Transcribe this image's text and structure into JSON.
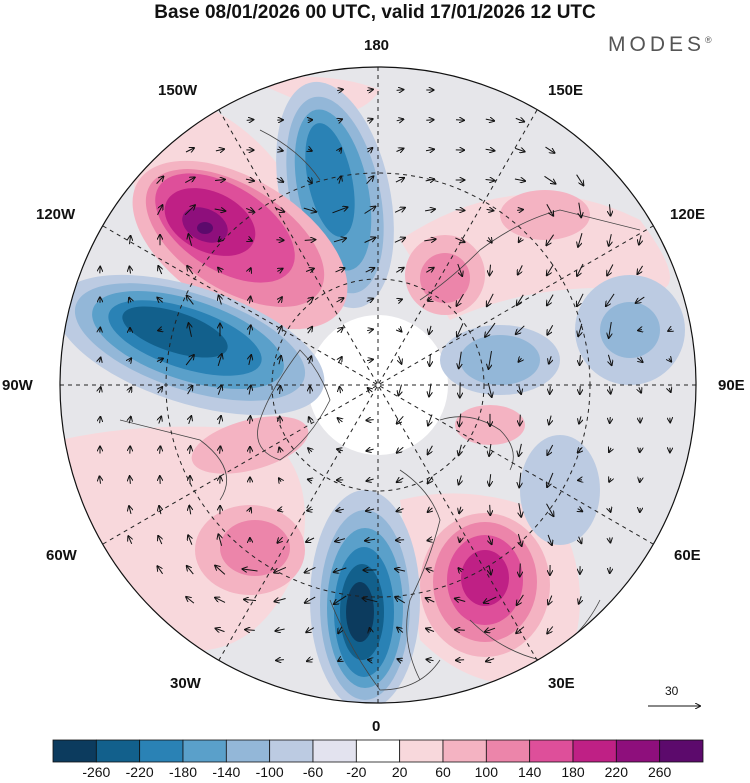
{
  "title": "Base 08/01/2026 00 UTC, valid 17/01/2026 12 UTC",
  "brand": "MODES",
  "brand_mark": "®",
  "lon_labels": {
    "lon_180": "180",
    "lon_150e": "150E",
    "lon_120e": "120E",
    "lon_90e": "90E",
    "lon_60e": "60E",
    "lon_30e": "30E",
    "lon_0": "0",
    "lon_30w": "30W",
    "lon_60w": "60W",
    "lon_90w": "90W",
    "lon_120w": "120W",
    "lon_150w": "150W"
  },
  "reference_vector": "30",
  "colorbar": {
    "labels": [
      "-260",
      "-220",
      "-180",
      "-140",
      "-100",
      "-60",
      "-20",
      "20",
      "60",
      "100",
      "140",
      "180",
      "220",
      "260"
    ],
    "colors": [
      "#0c3b5e",
      "#12608c",
      "#2a82b5",
      "#5aa0ca",
      "#93b7d8",
      "#bccbe2",
      "#e3e3ef",
      "#ffffff",
      "#f8d8dc",
      "#f4b3c2",
      "#ec85aa",
      "#de4f9a",
      "#bf2085",
      "#8e0f7c",
      "#5c0a6c"
    ]
  },
  "map_colors": {
    "background": "#e6e6ea",
    "land_line": "#444444",
    "grid_line": "#222222"
  }
}
